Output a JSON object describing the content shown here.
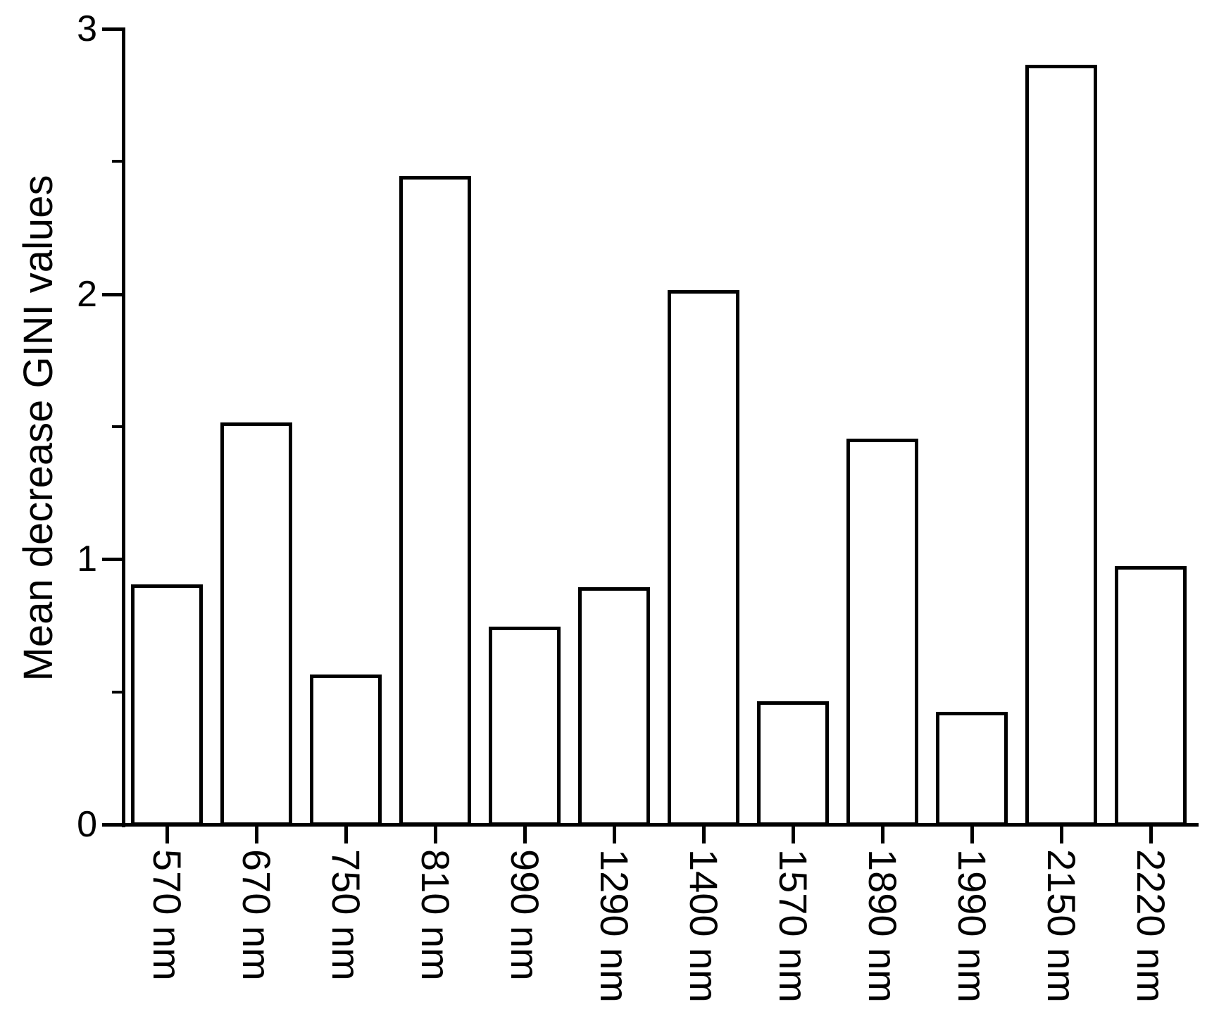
{
  "chart_data": {
    "type": "bar",
    "title": "",
    "xlabel": "",
    "ylabel": "Mean decrease GINI values",
    "categories": [
      "570 nm",
      "670 nm",
      "750 nm",
      "810 nm",
      "990 nm",
      "1290 nm",
      "1400 nm",
      "1570 nm",
      "1890 nm",
      "1990 nm",
      "2150 nm",
      "2220 nm"
    ],
    "values": [
      0.9,
      1.51,
      0.56,
      2.44,
      0.74,
      0.89,
      2.01,
      0.46,
      1.45,
      0.42,
      2.86,
      0.97
    ],
    "ylim": [
      0,
      3
    ],
    "yticks_major": [
      0,
      1,
      2,
      3
    ],
    "yticks_minor": [
      0.5,
      1.5,
      2.5
    ],
    "grid": false,
    "legend": null,
    "x_label_rotation_deg": 90,
    "bar_fill": "#ffffff",
    "bar_border": "#000000",
    "axis_color": "#000000",
    "background": "#ffffff"
  }
}
